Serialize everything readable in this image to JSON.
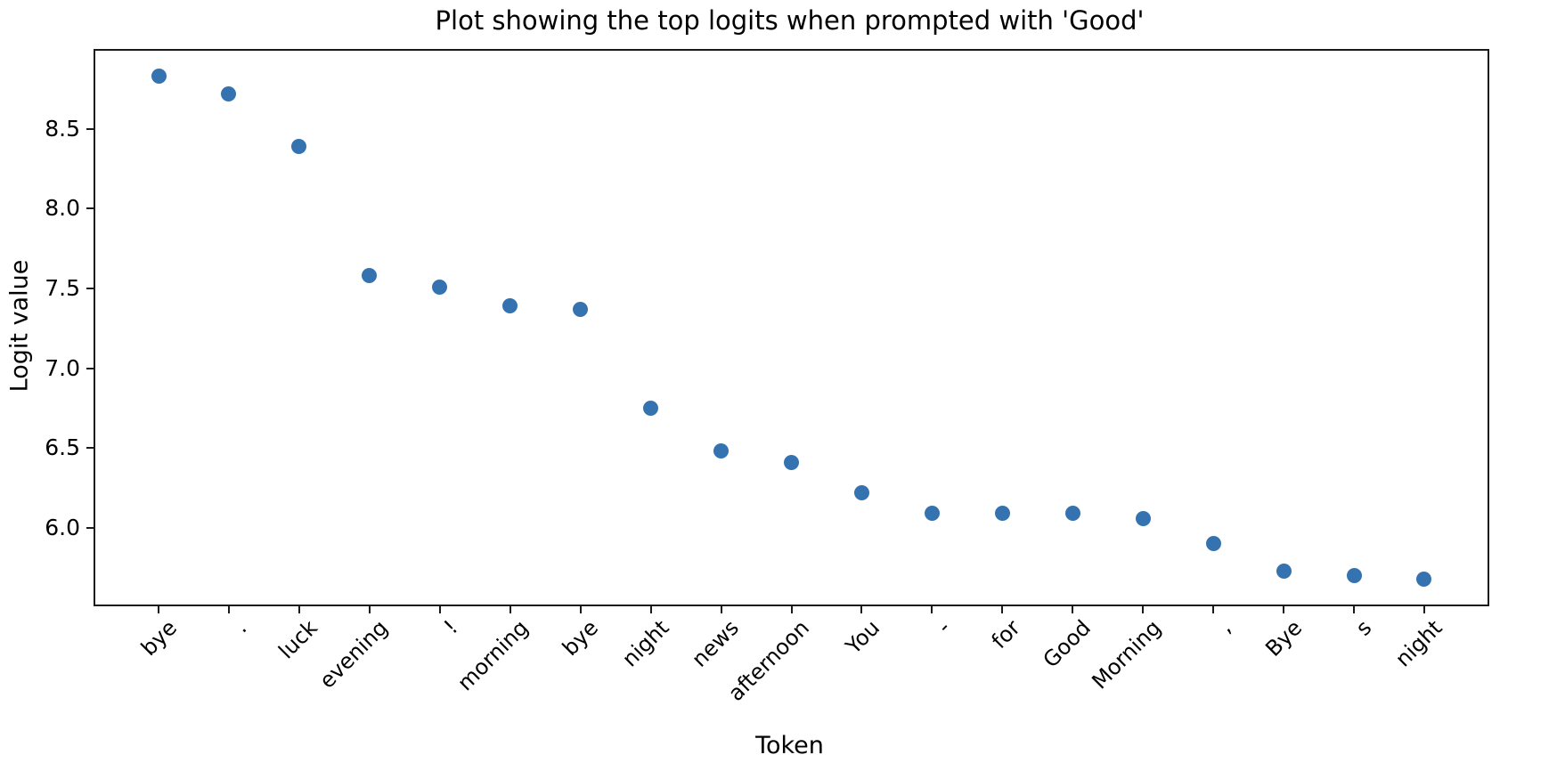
{
  "chart_data": {
    "type": "scatter",
    "title": "Plot showing the top logits when prompted with 'Good'",
    "xlabel": "Token",
    "ylabel": "Logit value",
    "categories": [
      "bye",
      ".",
      "luck",
      "evening",
      "!",
      "morning",
      "bye",
      "night",
      "news",
      "afternoon",
      "You",
      "-",
      "for",
      "Good",
      "Morning",
      ",",
      "Bye",
      "s",
      "night"
    ],
    "values": [
      8.83,
      8.72,
      8.39,
      7.58,
      7.51,
      7.39,
      7.37,
      6.75,
      6.48,
      6.41,
      6.22,
      6.09,
      6.09,
      6.09,
      6.06,
      5.9,
      5.73,
      5.7,
      5.68
    ],
    "yticks": [
      8.5,
      8.0,
      7.5,
      7.0,
      6.5,
      6.0
    ],
    "ytick_labels": [
      "8.5",
      "8.0",
      "7.5",
      "7.0",
      "6.5",
      "6.0"
    ],
    "ylim": [
      5.52,
      8.99
    ],
    "xlim": [
      -0.9,
      18.9
    ],
    "marker_color": "#3572b0",
    "grid": false,
    "legend": "none",
    "xtick_rotation_deg": 45
  }
}
